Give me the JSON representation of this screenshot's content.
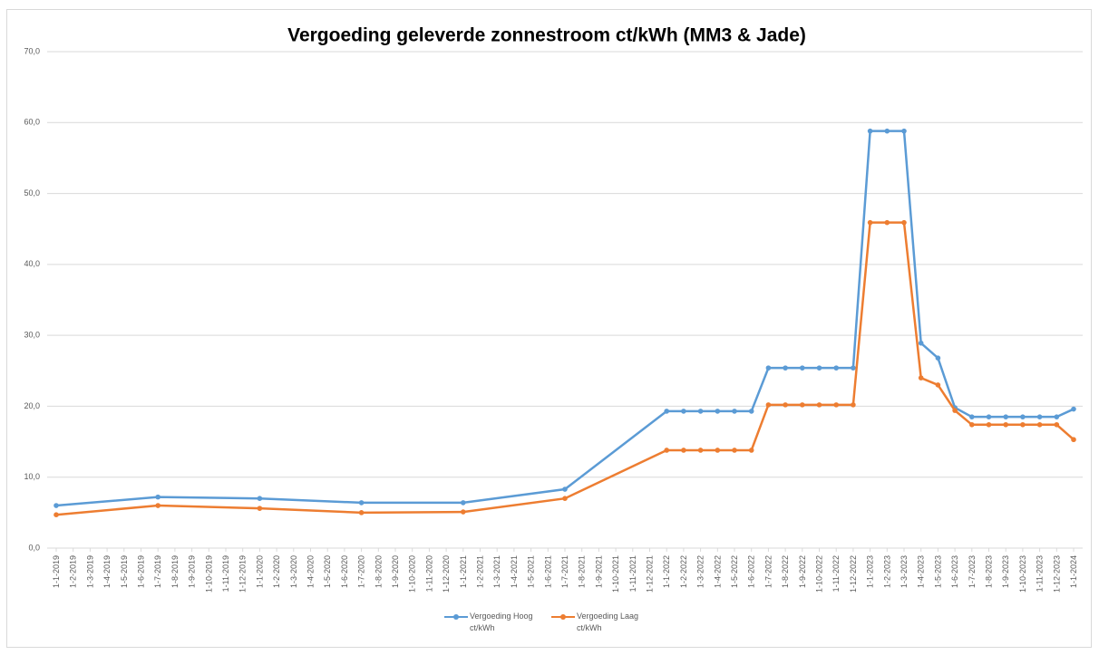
{
  "chart_data": {
    "type": "line",
    "title": "Vergoeding geleverde zonnestroom ct/kWh (MM3 & Jade)",
    "categories": [
      "1-1-2019",
      "1-2-2019",
      "1-3-2019",
      "1-4-2019",
      "1-5-2019",
      "1-6-2019",
      "1-7-2019",
      "1-8-2019",
      "1-9-2019",
      "1-10-2019",
      "1-11-2019",
      "1-12-2019",
      "1-1-2020",
      "1-2-2020",
      "1-3-2020",
      "1-4-2020",
      "1-5-2020",
      "1-6-2020",
      "1-7-2020",
      "1-8-2020",
      "1-9-2020",
      "1-10-2020",
      "1-11-2020",
      "1-12-2020",
      "1-1-2021",
      "1-2-2021",
      "1-3-2021",
      "1-4-2021",
      "1-5-2021",
      "1-6-2021",
      "1-7-2021",
      "1-8-2021",
      "1-9-2021",
      "1-10-2021",
      "1-11-2021",
      "1-12-2021",
      "1-1-2022",
      "1-2-2022",
      "1-3-2022",
      "1-4-2022",
      "1-5-2022",
      "1-6-2022",
      "1-7-2022",
      "1-8-2022",
      "1-9-2022",
      "1-10-2022",
      "1-11-2022",
      "1-12-2022",
      "1-1-2023",
      "1-2-2023",
      "1-3-2023",
      "1-4-2023",
      "1-5-2023",
      "1-6-2023",
      "1-7-2023",
      "1-8-2023",
      "1-9-2023",
      "1-10-2023",
      "1-11-2023",
      "1-12-2023",
      "1-1-2024"
    ],
    "series": [
      {
        "name": "Vergoeding Hoog ct/kWh",
        "color": "#5b9bd5",
        "values": [
          6.0,
          null,
          null,
          null,
          null,
          null,
          7.2,
          null,
          null,
          null,
          null,
          null,
          7.0,
          null,
          null,
          null,
          null,
          null,
          6.4,
          null,
          null,
          null,
          null,
          null,
          6.4,
          null,
          null,
          null,
          null,
          null,
          8.3,
          null,
          null,
          null,
          null,
          null,
          19.3,
          19.3,
          19.3,
          19.3,
          19.3,
          19.3,
          25.4,
          25.4,
          25.4,
          25.4,
          25.4,
          25.4,
          58.8,
          58.8,
          58.8,
          28.9,
          26.8,
          19.8,
          18.5,
          18.5,
          18.5,
          18.5,
          18.5,
          18.5,
          19.6
        ]
      },
      {
        "name": "Vergoeding Laag ct/kWh",
        "color": "#ed7d31",
        "values": [
          4.7,
          null,
          null,
          null,
          null,
          null,
          6.0,
          null,
          null,
          null,
          null,
          null,
          5.6,
          null,
          null,
          null,
          null,
          null,
          5.0,
          null,
          null,
          null,
          null,
          null,
          5.1,
          null,
          null,
          null,
          null,
          null,
          7.0,
          null,
          null,
          null,
          null,
          null,
          13.8,
          13.8,
          13.8,
          13.8,
          13.8,
          13.8,
          20.2,
          20.2,
          20.2,
          20.2,
          20.2,
          20.2,
          45.9,
          45.9,
          45.9,
          24.0,
          23.0,
          19.4,
          17.4,
          17.4,
          17.4,
          17.4,
          17.4,
          17.4,
          15.3
        ]
      }
    ],
    "ylim": [
      0,
      70
    ],
    "yticks": [
      {
        "value": 0,
        "label": "0,0"
      },
      {
        "value": 10,
        "label": "10,0"
      },
      {
        "value": 20,
        "label": "20,0"
      },
      {
        "value": 30,
        "label": "30,0"
      },
      {
        "value": 40,
        "label": "40,0"
      },
      {
        "value": 50,
        "label": "50,0"
      },
      {
        "value": 60,
        "label": "60,0"
      },
      {
        "value": 70,
        "label": "70,0"
      }
    ],
    "grid": true,
    "connect_gaps": true,
    "legend": "bottom"
  }
}
